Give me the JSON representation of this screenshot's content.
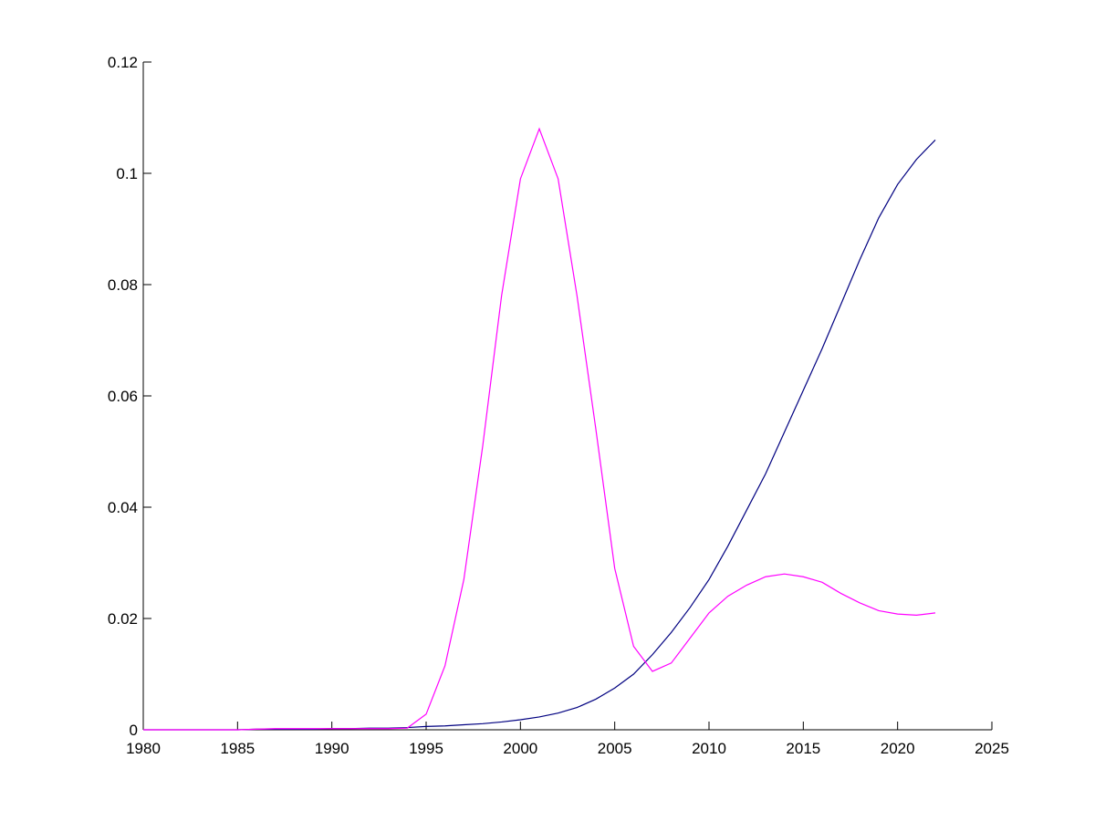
{
  "chart_data": {
    "type": "line",
    "x": [
      1980,
      1981,
      1982,
      1983,
      1984,
      1985,
      1986,
      1987,
      1988,
      1989,
      1990,
      1991,
      1992,
      1993,
      1994,
      1995,
      1996,
      1997,
      1998,
      1999,
      2000,
      2001,
      2002,
      2003,
      2004,
      2005,
      2006,
      2007,
      2008,
      2009,
      2010,
      2011,
      2012,
      2013,
      2014,
      2015,
      2016,
      2017,
      2018,
      2019,
      2020,
      2021,
      2022
    ],
    "series": [
      {
        "color": "#000080",
        "values": [
          0,
          0,
          0,
          0,
          0,
          0,
          0.0001,
          0.0001,
          0.0001,
          0.0001,
          0.0002,
          0.0002,
          0.0003,
          0.0003,
          0.0004,
          0.0006,
          0.0007,
          0.0009,
          0.0011,
          0.0014,
          0.0018,
          0.0023,
          0.003,
          0.004,
          0.0055,
          0.0075,
          0.01,
          0.0135,
          0.0175,
          0.022,
          0.027,
          0.033,
          0.0395,
          0.046,
          0.0535,
          0.061,
          0.0685,
          0.0765,
          0.0845,
          0.092,
          0.098,
          0.1025,
          0.106
        ]
      },
      {
        "color": "#ff00ff",
        "values": [
          0,
          0,
          0,
          0,
          0,
          0,
          0.0001,
          0.0002,
          0.0002,
          0.0002,
          0.0002,
          0.0002,
          0.0002,
          0.0002,
          0.0003,
          0.0028,
          0.0115,
          0.027,
          0.051,
          0.078,
          0.099,
          0.108,
          0.099,
          0.078,
          0.054,
          0.029,
          0.015,
          0.0105,
          0.012,
          0.0165,
          0.021,
          0.024,
          0.026,
          0.0275,
          0.028,
          0.0275,
          0.0265,
          0.0245,
          0.0228,
          0.0214,
          0.0208,
          0.0206,
          0.021
        ]
      }
    ],
    "xlim": [
      1980,
      2025
    ],
    "xticks": [
      1980,
      1985,
      1990,
      1995,
      2000,
      2005,
      2010,
      2015,
      2020,
      2025
    ],
    "ylim": [
      0,
      0.12
    ],
    "yticks": [
      0,
      0.02,
      0.04,
      0.06,
      0.08,
      0.1,
      0.12
    ]
  }
}
